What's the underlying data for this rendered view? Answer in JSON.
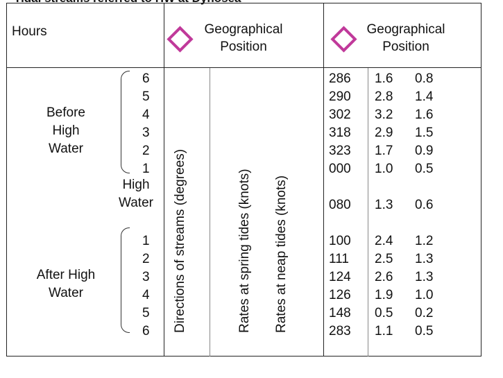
{
  "caption": "Tidal streams referred to HW at Dynosea",
  "header": {
    "hours": "Hours",
    "position_a": "Geographical Position",
    "position_b": "Geographical Position"
  },
  "groups": {
    "before": "Before High Water",
    "high_water": "High Water",
    "after": "After High Water"
  },
  "vertical_labels": {
    "directions": "Directions of streams (degrees)",
    "spring": "Rates at spring tides (knots)",
    "neap": "Rates at neap tides (knots)"
  },
  "colors": {
    "diamond": "#c0399a"
  },
  "rows": [
    {
      "hour": "6",
      "dir": "286",
      "spring": "1.6",
      "neap": "0.8"
    },
    {
      "hour": "5",
      "dir": "290",
      "spring": "2.8",
      "neap": "1.4"
    },
    {
      "hour": "4",
      "dir": "302",
      "spring": "3.2",
      "neap": "1.6"
    },
    {
      "hour": "3",
      "dir": "318",
      "spring": "2.9",
      "neap": "1.5"
    },
    {
      "hour": "2",
      "dir": "323",
      "spring": "1.7",
      "neap": "0.9"
    },
    {
      "hour": "1",
      "dir": "000",
      "spring": "1.0",
      "neap": "0.5"
    },
    {
      "hour": "",
      "dir": "080",
      "spring": "1.3",
      "neap": "0.6"
    },
    {
      "hour": "1",
      "dir": "100",
      "spring": "2.4",
      "neap": "1.2"
    },
    {
      "hour": "2",
      "dir": "111",
      "spring": "2.5",
      "neap": "1.3"
    },
    {
      "hour": "3",
      "dir": "124",
      "spring": "2.6",
      "neap": "1.3"
    },
    {
      "hour": "4",
      "dir": "126",
      "spring": "1.9",
      "neap": "1.0"
    },
    {
      "hour": "5",
      "dir": "148",
      "spring": "0.5",
      "neap": "0.2"
    },
    {
      "hour": "6",
      "dir": "283",
      "spring": "1.1",
      "neap": "0.5"
    }
  ]
}
